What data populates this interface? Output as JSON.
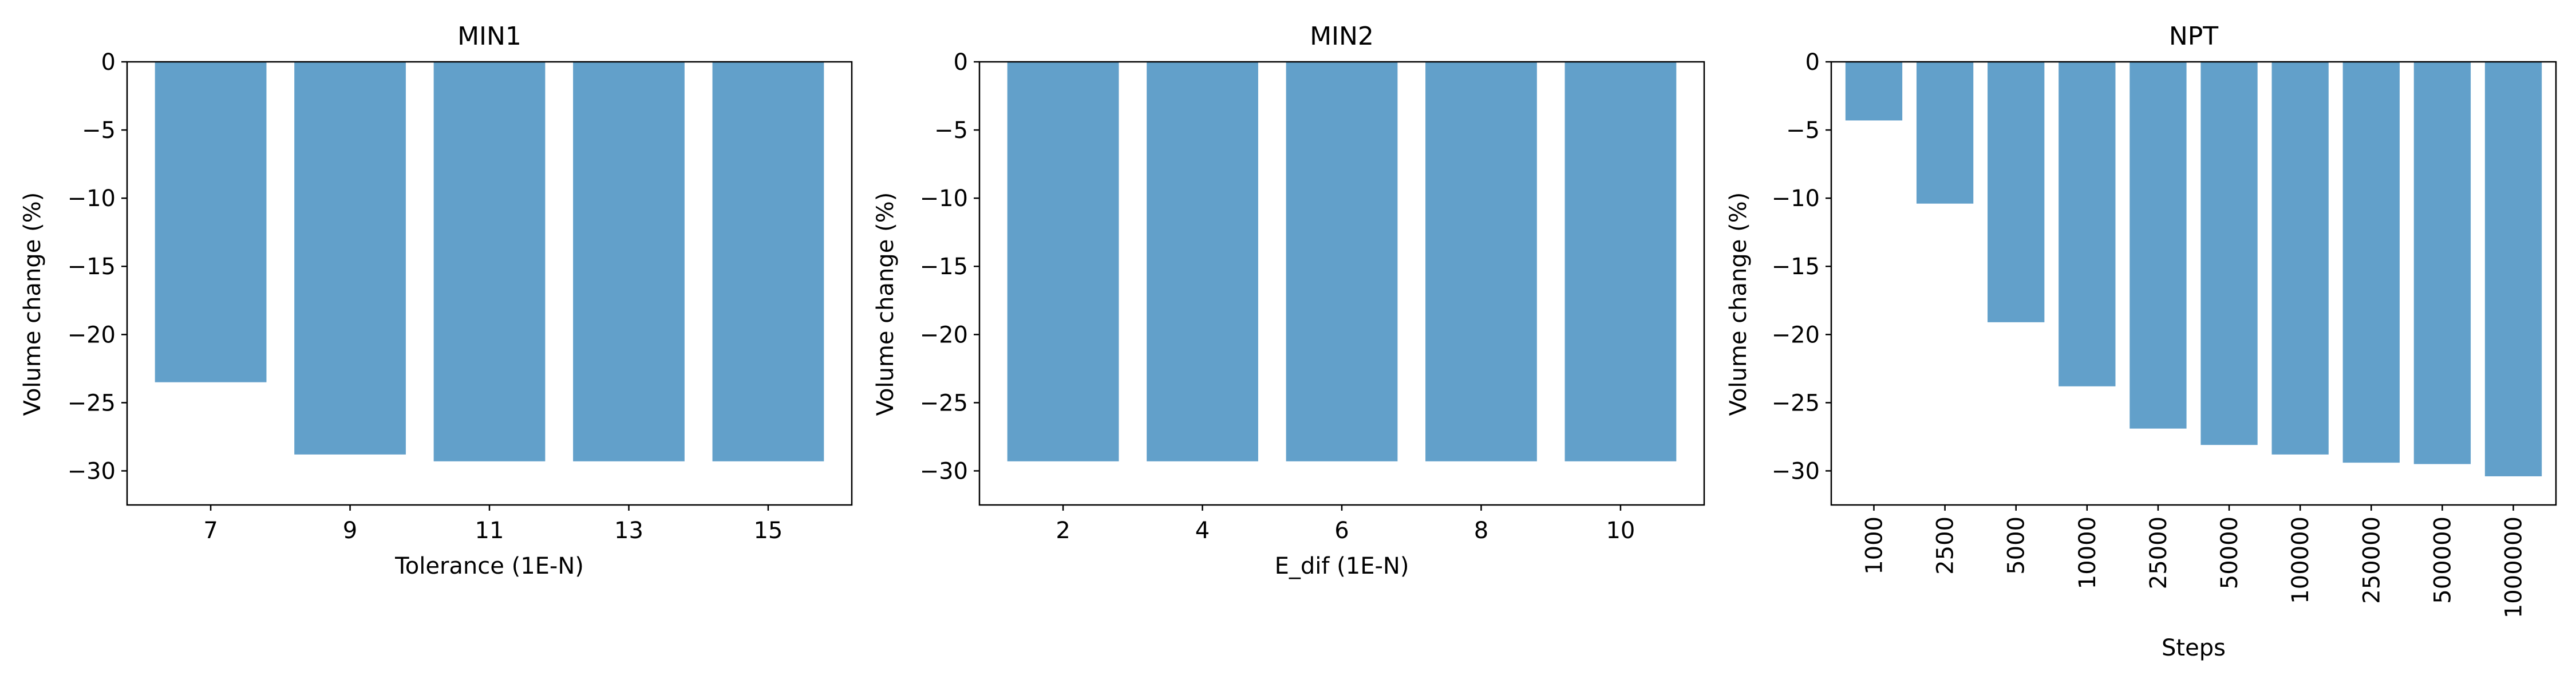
{
  "style": {
    "bar_color": "#62a0ca",
    "axis_color": "#000000",
    "background": "#ffffff"
  },
  "chart_data": [
    {
      "type": "bar",
      "title": "MIN1",
      "xlabel": "Tolerance (1E-N)",
      "ylabel": "Volume change (%)",
      "categories": [
        "7",
        "9",
        "11",
        "13",
        "15"
      ],
      "values": [
        -23.5,
        -28.8,
        -29.3,
        -29.3,
        -29.3
      ],
      "ylim": [
        -32.5,
        0
      ],
      "yticks": [
        0,
        -5,
        -10,
        -15,
        -20,
        -25,
        -30
      ],
      "xtick_rotation": "horizontal",
      "grid": false
    },
    {
      "type": "bar",
      "title": "MIN2",
      "xlabel": "E_dif (1E-N)",
      "ylabel": "Volume change (%)",
      "categories": [
        "2",
        "4",
        "6",
        "8",
        "10"
      ],
      "values": [
        -29.3,
        -29.3,
        -29.3,
        -29.3,
        -29.3
      ],
      "ylim": [
        -32.5,
        0
      ],
      "yticks": [
        0,
        -5,
        -10,
        -15,
        -20,
        -25,
        -30
      ],
      "xtick_rotation": "horizontal",
      "grid": false
    },
    {
      "type": "bar",
      "title": "NPT",
      "xlabel": "Steps",
      "ylabel": "Volume change (%)",
      "categories": [
        "1000",
        "2500",
        "5000",
        "10000",
        "25000",
        "50000",
        "100000",
        "250000",
        "500000",
        "1000000"
      ],
      "values": [
        -4.3,
        -10.4,
        -19.1,
        -23.8,
        -26.9,
        -28.1,
        -28.8,
        -29.4,
        -29.5,
        -30.4
      ],
      "ylim": [
        -32.5,
        0
      ],
      "yticks": [
        0,
        -5,
        -10,
        -15,
        -20,
        -25,
        -30
      ],
      "xtick_rotation": "vertical",
      "grid": false
    }
  ]
}
